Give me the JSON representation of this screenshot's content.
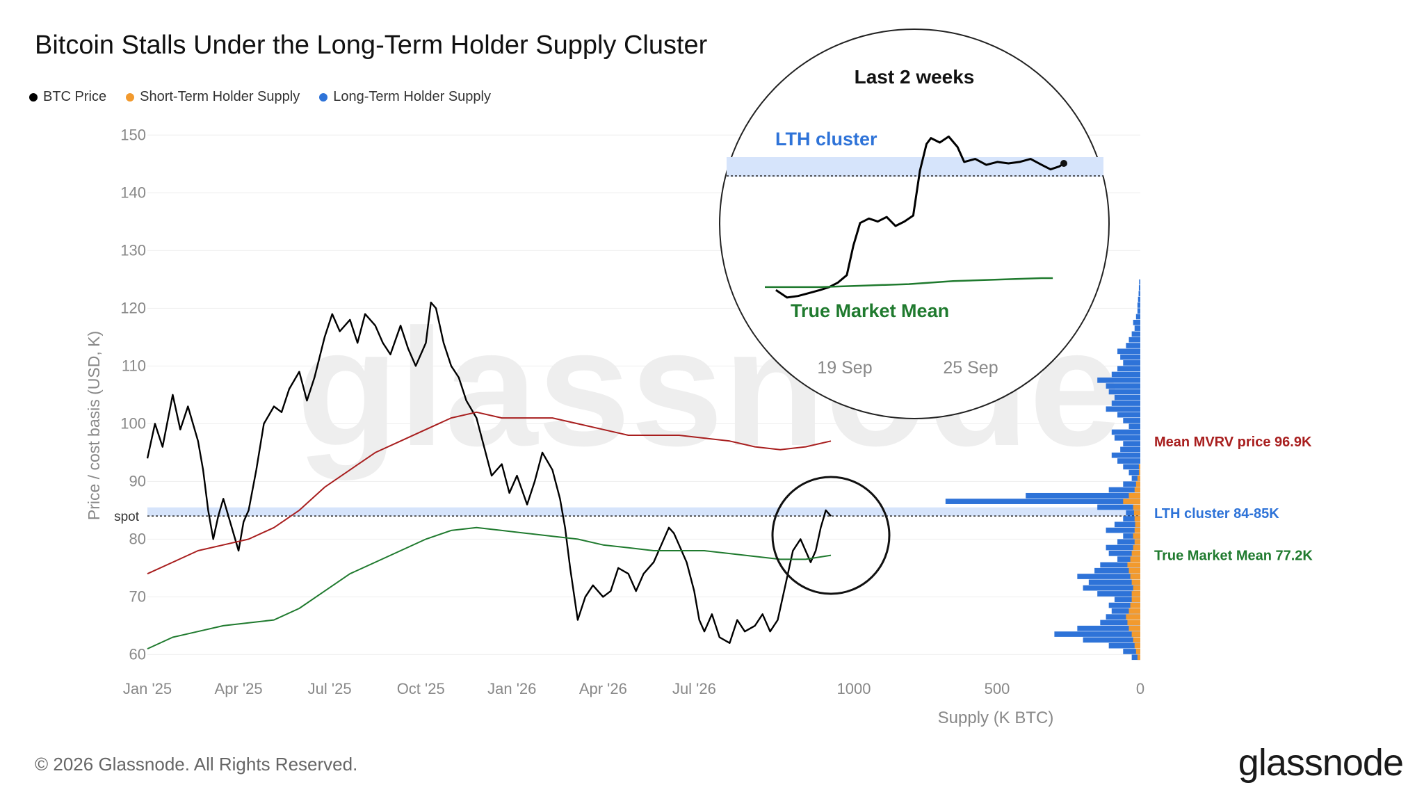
{
  "title": "Bitcoin Stalls Under the Long-Term Holder Supply Cluster",
  "legend": [
    {
      "label": "BTC Price",
      "color": "#000000"
    },
    {
      "label": "Short-Term Holder Supply",
      "color": "#f29a2e"
    },
    {
      "label": "Long-Term Holder Supply",
      "color": "#2e73d8"
    }
  ],
  "watermark": "glassnode",
  "footer": "© 2026 Glassnode. All Rights Reserved.",
  "brand": "glassnode",
  "chart_data": [
    {
      "type": "line",
      "ylabel": "Price / cost basis (USD, K)",
      "ylim": [
        58,
        151
      ],
      "yticks": [
        60,
        70,
        80,
        90,
        100,
        110,
        120,
        130,
        140,
        150
      ],
      "xticks": [
        "Jan '25",
        "Apr '25",
        "Jul '25",
        "Oct '25",
        "Jan '26",
        "Apr '26",
        "Jul '26"
      ],
      "x_range_months": [
        0,
        21
      ],
      "spot_label": "spot",
      "spot_value": 84,
      "lth_band": [
        84,
        85.5
      ],
      "series": [
        {
          "name": "BTC Price",
          "color": "#000000",
          "points": [
            [
              0,
              94
            ],
            [
              0.3,
              100
            ],
            [
              0.6,
              96
            ],
            [
              1,
              105
            ],
            [
              1.3,
              99
            ],
            [
              1.6,
              103
            ],
            [
              2,
              97
            ],
            [
              2.2,
              92
            ],
            [
              2.4,
              85
            ],
            [
              2.6,
              80
            ],
            [
              2.8,
              84
            ],
            [
              3,
              87
            ],
            [
              3.2,
              84
            ],
            [
              3.4,
              81
            ],
            [
              3.6,
              78
            ],
            [
              3.8,
              83
            ],
            [
              4,
              85
            ],
            [
              4.3,
              92
            ],
            [
              4.6,
              100
            ],
            [
              5,
              103
            ],
            [
              5.3,
              102
            ],
            [
              5.6,
              106
            ],
            [
              6,
              109
            ],
            [
              6.3,
              104
            ],
            [
              6.6,
              108
            ],
            [
              7,
              115
            ],
            [
              7.3,
              119
            ],
            [
              7.6,
              116
            ],
            [
              8,
              118
            ],
            [
              8.3,
              114
            ],
            [
              8.6,
              119
            ],
            [
              9,
              117
            ],
            [
              9.3,
              114
            ],
            [
              9.6,
              112
            ],
            [
              10,
              117
            ],
            [
              10.3,
              113
            ],
            [
              10.6,
              110
            ],
            [
              11,
              114
            ],
            [
              11.2,
              121
            ],
            [
              11.4,
              120
            ],
            [
              11.7,
              114
            ],
            [
              12,
              110
            ],
            [
              12.3,
              108
            ],
            [
              12.6,
              104
            ],
            [
              13,
              101
            ],
            [
              13.3,
              96
            ],
            [
              13.6,
              91
            ],
            [
              14,
              93
            ],
            [
              14.3,
              88
            ],
            [
              14.6,
              91
            ],
            [
              15,
              86
            ],
            [
              15.3,
              90
            ],
            [
              15.6,
              95
            ],
            [
              16,
              92
            ],
            [
              16.3,
              87
            ],
            [
              16.5,
              82
            ],
            [
              16.7,
              75
            ],
            [
              17,
              66
            ],
            [
              17.3,
              70
            ],
            [
              17.6,
              72
            ],
            [
              18,
              70
            ],
            [
              18.3,
              71
            ],
            [
              18.6,
              75
            ],
            [
              19,
              74
            ],
            [
              19.3,
              71
            ],
            [
              19.6,
              74
            ],
            [
              20,
              76
            ],
            [
              20.3,
              79
            ],
            [
              20.6,
              82
            ],
            [
              20.8,
              81
            ],
            [
              21,
              79
            ],
            [
              21.3,
              76
            ],
            [
              21.6,
              71
            ],
            [
              21.8,
              66
            ],
            [
              22,
              64
            ],
            [
              22.3,
              67
            ],
            [
              22.6,
              63
            ],
            [
              23,
              62
            ],
            [
              23.3,
              66
            ],
            [
              23.6,
              64
            ],
            [
              24,
              65
            ],
            [
              24.3,
              67
            ],
            [
              24.6,
              64
            ],
            [
              24.9,
              66
            ],
            [
              25.2,
              72
            ],
            [
              25.5,
              78
            ],
            [
              25.8,
              80
            ],
            [
              26,
              78
            ],
            [
              26.2,
              76
            ],
            [
              26.4,
              78
            ],
            [
              26.6,
              82
            ],
            [
              26.8,
              85
            ],
            [
              27,
              84
            ]
          ]
        },
        {
          "name": "Mean MVRV price",
          "color": "#a81e1e",
          "points": [
            [
              0,
              74
            ],
            [
              1,
              76
            ],
            [
              2,
              78
            ],
            [
              3,
              79
            ],
            [
              4,
              80
            ],
            [
              5,
              82
            ],
            [
              6,
              85
            ],
            [
              7,
              89
            ],
            [
              8,
              92
            ],
            [
              9,
              95
            ],
            [
              10,
              97
            ],
            [
              11,
              99
            ],
            [
              12,
              101
            ],
            [
              13,
              102
            ],
            [
              14,
              101
            ],
            [
              15,
              101
            ],
            [
              16,
              101
            ],
            [
              17,
              100
            ],
            [
              18,
              99
            ],
            [
              19,
              98
            ],
            [
              20,
              98
            ],
            [
              21,
              98
            ],
            [
              22,
              97.5
            ],
            [
              23,
              97
            ],
            [
              24,
              96
            ],
            [
              25,
              95.5
            ],
            [
              26,
              96
            ],
            [
              27,
              97
            ]
          ]
        },
        {
          "name": "True Market Mean",
          "color": "#1f7a2e",
          "points": [
            [
              0,
              61
            ],
            [
              1,
              63
            ],
            [
              2,
              64
            ],
            [
              3,
              65
            ],
            [
              4,
              65.5
            ],
            [
              5,
              66
            ],
            [
              6,
              68
            ],
            [
              7,
              71
            ],
            [
              8,
              74
            ],
            [
              9,
              76
            ],
            [
              10,
              78
            ],
            [
              11,
              80
            ],
            [
              12,
              81.5
            ],
            [
              13,
              82
            ],
            [
              14,
              81.5
            ],
            [
              15,
              81
            ],
            [
              16,
              80.5
            ],
            [
              17,
              80
            ],
            [
              18,
              79
            ],
            [
              19,
              78.5
            ],
            [
              20,
              78
            ],
            [
              21,
              78
            ],
            [
              22,
              78
            ],
            [
              23,
              77.5
            ],
            [
              24,
              77
            ],
            [
              25,
              76.5
            ],
            [
              26,
              76.5
            ],
            [
              27,
              77.2
            ]
          ]
        }
      ],
      "annotations": [
        {
          "text": "Mean MVRV price 96.9K",
          "color": "#a81e1e",
          "y": 96.9
        },
        {
          "text": "LTH cluster 84-85K",
          "color": "#2e73d8",
          "y": 84.5
        },
        {
          "text": "True Market Mean 77.2K",
          "color": "#1f7a2e",
          "y": 77.2
        }
      ]
    },
    {
      "type": "bar",
      "orientation": "horizontal",
      "xlabel": "Supply (K BTC)",
      "xticks": [
        1000,
        500,
        0
      ],
      "bins_price_from": 59,
      "bin_width": 1,
      "series": [
        {
          "name": "Short-Term Holder Supply",
          "color": "#f29a2e",
          "values": [
            10,
            15,
            20,
            25,
            30,
            40,
            45,
            50,
            40,
            35,
            30,
            30,
            25,
            30,
            35,
            40,
            45,
            35,
            30,
            25,
            20,
            25,
            20,
            18,
            20,
            22,
            25,
            60,
            40,
            20,
            15,
            10,
            5,
            5,
            0,
            0,
            0,
            0,
            0,
            0,
            0,
            0,
            0,
            0,
            0,
            0,
            0,
            0,
            0,
            0,
            0,
            0,
            0,
            0,
            0,
            0,
            0,
            0,
            0,
            0,
            0,
            0,
            0,
            0,
            0,
            0
          ]
        },
        {
          "name": "Long-Term Holder Supply",
          "color": "#2e73d8",
          "values": [
            30,
            60,
            110,
            200,
            300,
            220,
            140,
            120,
            100,
            110,
            90,
            150,
            200,
            180,
            220,
            160,
            140,
            80,
            110,
            120,
            80,
            60,
            120,
            90,
            60,
            50,
            150,
            680,
            400,
            110,
            60,
            30,
            40,
            60,
            80,
            100,
            70,
            60,
            90,
            100,
            40,
            60,
            80,
            120,
            100,
            90,
            110,
            120,
            150,
            100,
            80,
            60,
            70,
            80,
            50,
            40,
            30,
            20,
            25,
            15,
            10,
            10,
            8,
            6,
            5,
            4
          ]
        }
      ]
    },
    {
      "type": "line",
      "title": "Last 2 weeks",
      "xticks": [
        "19 Sep",
        "25 Sep"
      ],
      "band_label": "LTH cluster",
      "mean_label": "True Market Mean",
      "series": [
        {
          "name": "BTC Price",
          "color": "#000000",
          "points": [
            [
              0,
              76
            ],
            [
              0.5,
              75.5
            ],
            [
              1,
              75.6
            ],
            [
              1.5,
              75.8
            ],
            [
              2,
              76
            ],
            [
              2.4,
              76.2
            ],
            [
              2.8,
              76.5
            ],
            [
              3.2,
              77
            ],
            [
              3.5,
              79
            ],
            [
              3.8,
              80.5
            ],
            [
              4.2,
              80.8
            ],
            [
              4.6,
              80.6
            ],
            [
              5,
              80.9
            ],
            [
              5.4,
              80.3
            ],
            [
              5.8,
              80.6
            ],
            [
              6.2,
              81
            ],
            [
              6.5,
              84
            ],
            [
              6.8,
              85.8
            ],
            [
              7,
              86.2
            ],
            [
              7.4,
              85.9
            ],
            [
              7.8,
              86.3
            ],
            [
              8.2,
              85.6
            ],
            [
              8.5,
              84.6
            ],
            [
              9,
              84.8
            ],
            [
              9.5,
              84.4
            ],
            [
              10,
              84.6
            ],
            [
              10.5,
              84.5
            ],
            [
              11,
              84.6
            ],
            [
              11.5,
              84.8
            ],
            [
              12,
              84.4
            ],
            [
              12.4,
              84.1
            ],
            [
              12.8,
              84.3
            ],
            [
              13,
              84.5
            ]
          ]
        },
        {
          "name": "True Market Mean",
          "color": "#1f7a2e",
          "points": [
            [
              -0.5,
              76.2
            ],
            [
              2,
              76.2
            ],
            [
              4,
              76.3
            ],
            [
              6,
              76.4
            ],
            [
              8,
              76.6
            ],
            [
              10,
              76.7
            ],
            [
              12,
              76.8
            ],
            [
              12.5,
              76.8
            ]
          ]
        }
      ]
    }
  ]
}
